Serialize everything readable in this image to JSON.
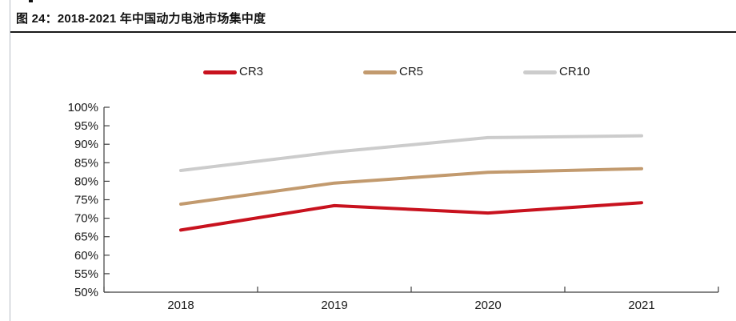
{
  "page": {
    "figure_caption": "图 24：2018-2021 年中国动力电池市场集中度"
  },
  "chart_data": {
    "type": "line",
    "title": "图 24：2018-2021 年中国动力电池市场集中度",
    "categories": [
      "2018",
      "2019",
      "2020",
      "2021"
    ],
    "series": [
      {
        "name": "CR3",
        "color": "#C8121E",
        "values": [
          66.8,
          73.4,
          71.4,
          74.2
        ]
      },
      {
        "name": "CR5",
        "color": "#C29A6E",
        "values": [
          73.8,
          79.5,
          82.4,
          83.4
        ]
      },
      {
        "name": "CR10",
        "color": "#CCCCCC",
        "values": [
          82.9,
          87.9,
          91.8,
          92.3
        ]
      }
    ],
    "ylim": [
      50,
      100
    ],
    "ytick_labels": [
      "100%",
      "95%",
      "90%",
      "85%",
      "80%",
      "75%",
      "70%",
      "65%",
      "60%",
      "55%",
      "50%"
    ],
    "xlabel": "",
    "ylabel": "",
    "unit": "%",
    "grid": false,
    "legend_position": "top",
    "axis_color": "#3f3f3f"
  }
}
